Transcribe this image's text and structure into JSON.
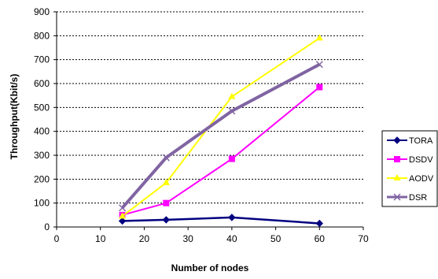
{
  "chart_data": {
    "type": "line",
    "title": "",
    "xlabel": "Number of nodes",
    "ylabel": "Throughput(Kbit/s)",
    "xlim": [
      0,
      70
    ],
    "ylim": [
      0,
      900
    ],
    "xticks": [
      0,
      10,
      20,
      30,
      40,
      50,
      60,
      70
    ],
    "yticks": [
      0,
      100,
      200,
      300,
      400,
      500,
      600,
      700,
      800,
      900
    ],
    "grid": "horizontal dotted",
    "legend_position": "right",
    "series": [
      {
        "name": "TORA",
        "color": "#000080",
        "marker": "diamond",
        "x": [
          15,
          25,
          40,
          60
        ],
        "y": [
          25,
          30,
          40,
          15
        ]
      },
      {
        "name": "DSDV",
        "color": "#ff00ff",
        "marker": "square",
        "x": [
          15,
          25,
          40,
          60
        ],
        "y": [
          50,
          100,
          285,
          585
        ]
      },
      {
        "name": "AODV",
        "color": "#ffff00",
        "marker": "triangle",
        "x": [
          15,
          25,
          40,
          60
        ],
        "y": [
          45,
          185,
          545,
          790
        ]
      },
      {
        "name": "DSR",
        "color": "#8064a2",
        "marker": "x",
        "x": [
          15,
          25,
          40,
          60
        ],
        "y": [
          80,
          290,
          485,
          680
        ]
      }
    ]
  }
}
